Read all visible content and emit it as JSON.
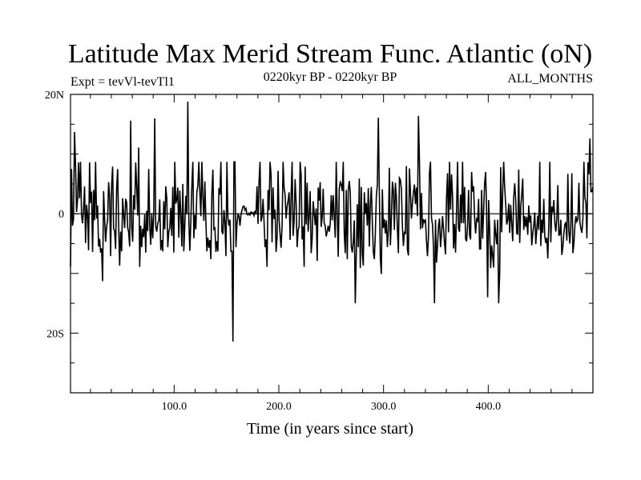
{
  "chart_data": {
    "type": "line",
    "title": "Latitude Max Merid Stream Func. Atlantic (oN)",
    "subtitle_left": "Expt = tevVl-tevTl1",
    "subtitle_center": "0220kyr BP - 0220kyr BP",
    "subtitle_right": "ALL_MONTHS",
    "xlabel": "Time (in years since start)",
    "ylabel": "",
    "xlim": [
      1,
      500
    ],
    "ylim": [
      -30,
      20
    ],
    "xticks": [
      100,
      200,
      300,
      400
    ],
    "xtick_labels": [
      "100.0",
      "200.0",
      "300.0",
      "400.0"
    ],
    "yticks": [
      20,
      0,
      -20
    ],
    "ytick_labels": [
      "20N",
      "0",
      "20S"
    ],
    "reference_line": 0,
    "grid": false,
    "series": [
      {
        "values": [
          -8.9,
          7.5,
          -2.0,
          -0.9,
          13.7,
          8.3,
          0.3,
          2.3,
          8.6,
          2.6,
          8.7,
          -0.2,
          -1.6,
          0.7,
          4.6,
          -4.9,
          1.5,
          -0.1,
          -6.1,
          8.6,
          1.8,
          3.7,
          -6.4,
          4.0,
          -1.1,
          8.7,
          -0.8,
          1.4,
          -5.5,
          -4.2,
          -6.5,
          -5.8,
          -11.3,
          3.8,
          -0.8,
          -4.7,
          -2.2,
          -1.1,
          5.3,
          2.9,
          -7.1,
          4.8,
          7.9,
          -2.5,
          -2.9,
          -5.9,
          4.3,
          7.5,
          -1.8,
          -8.7,
          -3.0,
          -6.3,
          2.6,
          -0.2,
          -2.4,
          2.5,
          1.9,
          -2.3,
          -3.1,
          -5.5,
          15.6,
          -2.2,
          -4.7,
          3.1,
          0.7,
          8.6,
          4.5,
          -0.3,
          11.1,
          -8.9,
          -2.0,
          -5.6,
          -2.5,
          -3.9,
          -0.1,
          -6.5,
          0.5,
          -2.9,
          7.5,
          -2.1,
          -5.2,
          0.1,
          -4.1,
          -0.1,
          16.0,
          -2.1,
          -3.0,
          -1.6,
          -1.2,
          2.4,
          -6.1,
          -4.4,
          -6.3,
          2.1,
          -2.6,
          4.6,
          2.6,
          -5.6,
          -3.0,
          -2.4,
          1.0,
          -3.7,
          4.5,
          -6.5,
          8.7,
          1.7,
          2.4,
          4.4,
          -4.0,
          3.9,
          -0.1,
          -5.5,
          5.0,
          -6.3,
          -1.9,
          3.0,
          -0.1,
          18.8,
          -1.1,
          -6.2,
          -1.3,
          4.6,
          8.7,
          -4.1,
          -0.2,
          -2.6,
          3.6,
          4.7,
          8.7,
          3.6,
          -0.4,
          8.7,
          2.9,
          -1.2,
          5.4,
          -1.3,
          -6.3,
          -4.0,
          -5.7,
          -4.4,
          -7.6,
          3.5,
          7.4,
          -2.6,
          -2.4,
          -6.4,
          -4.6,
          -6.3,
          4.3,
          3.2,
          8.7,
          -3.0,
          -3.4,
          0.6,
          -1.4,
          -7.1,
          8.7,
          -0.7,
          -2.0,
          -1.0,
          -6.3,
          -6.3,
          -21.4,
          8.7,
          8.7,
          -5.6,
          -1.7,
          -0.1,
          -0.3,
          -2.0,
          -0.2,
          0.6,
          1.2,
          1.3,
          0.6,
          0.9,
          -0.1,
          -0.2,
          0.1,
          -0.2,
          0.3,
          0.1,
          0.2,
          -0.3,
          0.5,
          -0.1,
          4.6,
          -1.7,
          5.3,
          8.7,
          -1.3,
          -0.5,
          2.5,
          -1.2,
          -5.6,
          -4.3,
          -8.9,
          4.0,
          0.6,
          8.7,
          6.6,
          -4.8,
          4.4,
          -0.9,
          0.7,
          -6.4,
          -4.0,
          7.2,
          -1.0,
          -3.4,
          -5.7,
          -2.0,
          8.7,
          4.3,
          3.2,
          -0.8,
          1.2,
          2.2,
          3.6,
          -4.4,
          2.9,
          8.7,
          -3.7,
          -1.3,
          5.8,
          1.8,
          -5.6,
          -2.8,
          -2.1,
          8.7,
          6.5,
          -4.3,
          -2.1,
          -8.9,
          7.9,
          -1.8,
          5.2,
          -3.0,
          -0.3,
          3.8,
          -6.6,
          -4.2,
          2.1,
          0.2,
          -1.9,
          0.9,
          -7.9,
          4.4,
          2.2,
          5.3,
          -2.2,
          -0.5,
          4.2,
          -1.6,
          -2.0,
          -3.8,
          -3.0,
          -2.0,
          -3.0,
          -1.8,
          3.1,
          -1.1,
          3.1,
          -0.1,
          -4.0,
          8.7,
          0.1,
          -7.2,
          4.2,
          5.3,
          4.9,
          3.8,
          8.7,
          -3.2,
          -6.6,
          4.0,
          -7.6,
          3.9,
          5.5,
          3.5,
          -5.4,
          -6.5,
          -4.7,
          -1.1,
          -15.0,
          -6.6,
          1.6,
          -5.6,
          5.9,
          -9.1,
          4.5,
          -6.7,
          -8.7,
          3.6,
          0.0,
          1.8,
          -2.0,
          4.3,
          -5.5,
          1.4,
          4.5,
          -1.3,
          -6.4,
          -7.6,
          -3.3,
          2.9,
          4.9,
          16.1,
          3.6,
          -7.5,
          -10.1,
          4.1,
          -2.4,
          -0.9,
          -3.3,
          -1.1,
          -5.6,
          -2.6,
          7.7,
          -5.3,
          -1.0,
          5.4,
          4.0,
          -2.7,
          5.2,
          2.7,
          -2.6,
          -6.6,
          6.0,
          5.7,
          4.1,
          -2.1,
          -5.4,
          -3.0,
          -3.4,
          8.0,
          -6.0,
          -7.0,
          7.6,
          3.7,
          -0.8,
          1.8,
          3.6,
          4.9,
          1.6,
          4.4,
          -0.4,
          16.4,
          8.7,
          -2.6,
          3.5,
          -2.4,
          -0.9,
          -1.4,
          -1.1,
          -4.5,
          -7.1,
          -3.8,
          6.9,
          8.7,
          -0.7,
          -1.8,
          -5.6,
          -15.0,
          -1.0,
          -8.2,
          -5.4,
          -2.0,
          -0.8,
          -5.6,
          -3.5,
          -0.4,
          -2.5,
          -4.9,
          -6.8,
          2.7,
          6.8,
          -3.1,
          8.7,
          0.7,
          6.6,
          3.1,
          -5.8,
          -1.7,
          -6.5,
          0.6,
          8.7,
          -2.5,
          -3.0,
          3.2,
          -1.6,
          8.7,
          -1.6,
          4.5,
          -4.2,
          -4.6,
          -2.0,
          4.0,
          -3.6,
          -4.3,
          7.0,
          3.7,
          4.6,
          -0.7,
          -3.3,
          -0.9,
          -1.2,
          2.5,
          -5.9,
          -5.9,
          4.0,
          -4.2,
          0.5,
          5.1,
          7.0,
          0.2,
          -14.0,
          2.3,
          -2.6,
          -9.1,
          -5.3,
          -7.0,
          -9.0,
          -1.0,
          -3.4,
          -5.1,
          -1.0,
          -15.0,
          -10.0,
          7.8,
          -3.1,
          3.6,
          8.7,
          4.4,
          1.6,
          -1.8,
          -1.1,
          1.7,
          -3.2,
          1.5,
          -1.6,
          -4.6,
          2.7,
          5.1,
          2.4,
          -3.3,
          -3.4,
          7.4,
          -4.9,
          1.1,
          3.2,
          5.9,
          -2.7,
          -0.4,
          -2.2,
          -0.5,
          -3.5,
          1.4,
          -1.5,
          -0.3,
          -5.3,
          -3.3,
          -1.9,
          0.2,
          -5.1,
          -2.7,
          -0.3,
          -2.7,
          8.7,
          -5.4,
          -1.0,
          -3.2,
          2.5,
          -3.8,
          -4.9,
          -4.0,
          -7.5,
          -1.8,
          8.7,
          -4.8,
          1.2,
          0.2,
          2.3,
          -1.5,
          -3.0,
          -0.7,
          4.8,
          -3.6,
          -3.5,
          -1.0,
          -6.9,
          -5.6,
          -3.3,
          -1.8,
          -1.4,
          -4.5,
          6.7,
          -2.9,
          -5.0,
          -1.7,
          6.8,
          -6.6,
          -5.0,
          -2.0,
          -0.4,
          -1.3,
          -0.9,
          5.2,
          -1.4,
          -2.5,
          -3.2,
          -0.8,
          8.7,
          2.7,
          1.8,
          -4.1,
          8.6,
          6.6,
          12.6,
          3.7,
          3.7,
          4.5
        ]
      }
    ]
  }
}
